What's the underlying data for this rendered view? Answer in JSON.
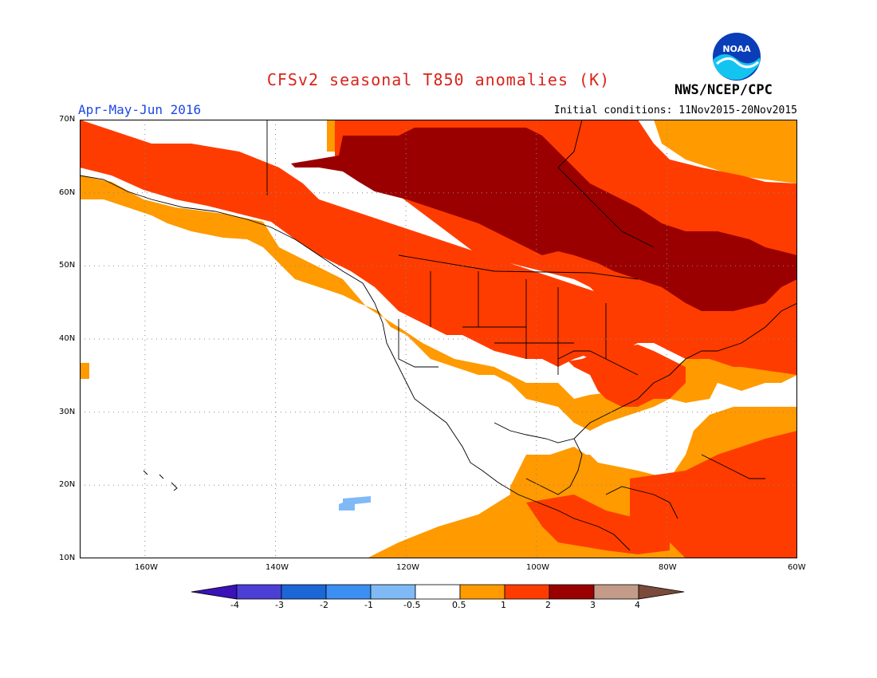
{
  "header": {
    "title": "CFSv2 seasonal T850 anomalies (K)",
    "period": "Apr-May-Jun 2016",
    "initial_conditions": "Initial conditions: 11Nov2015-20Nov2015",
    "agency": "NWS/NCEP/CPC",
    "logo_text": "NOAA"
  },
  "map": {
    "lon_range": [
      -170,
      -60
    ],
    "lat_range": [
      10,
      70
    ],
    "lat_labels": [
      "70N",
      "60N",
      "50N",
      "40N",
      "30N",
      "20N",
      "10N"
    ],
    "lon_labels": [
      "160W",
      "140W",
      "120W",
      "100W",
      "80W",
      "60W"
    ],
    "grid": "dotted"
  },
  "colorbar": {
    "labels": [
      "-4",
      "-3",
      "-2",
      "-1",
      "-0.5",
      "0.5",
      "1",
      "2",
      "3",
      "4"
    ],
    "colors": [
      "#3a12b8",
      "#4b3fd6",
      "#1c66d8",
      "#3b8ef2",
      "#7fbaf6",
      "#ffffff",
      "#ff9a00",
      "#ff3c00",
      "#9b0000",
      "#c49a88",
      "#7a4a3a"
    ]
  },
  "colors": {
    "anom_0_5_1": "#ff9a00",
    "anom_1_2": "#ff3c00",
    "anom_2_3": "#9b0000",
    "anom_neg_1_0_5": "#7fbaf6",
    "title": "#d8241c",
    "period": "#1c47e8"
  }
}
